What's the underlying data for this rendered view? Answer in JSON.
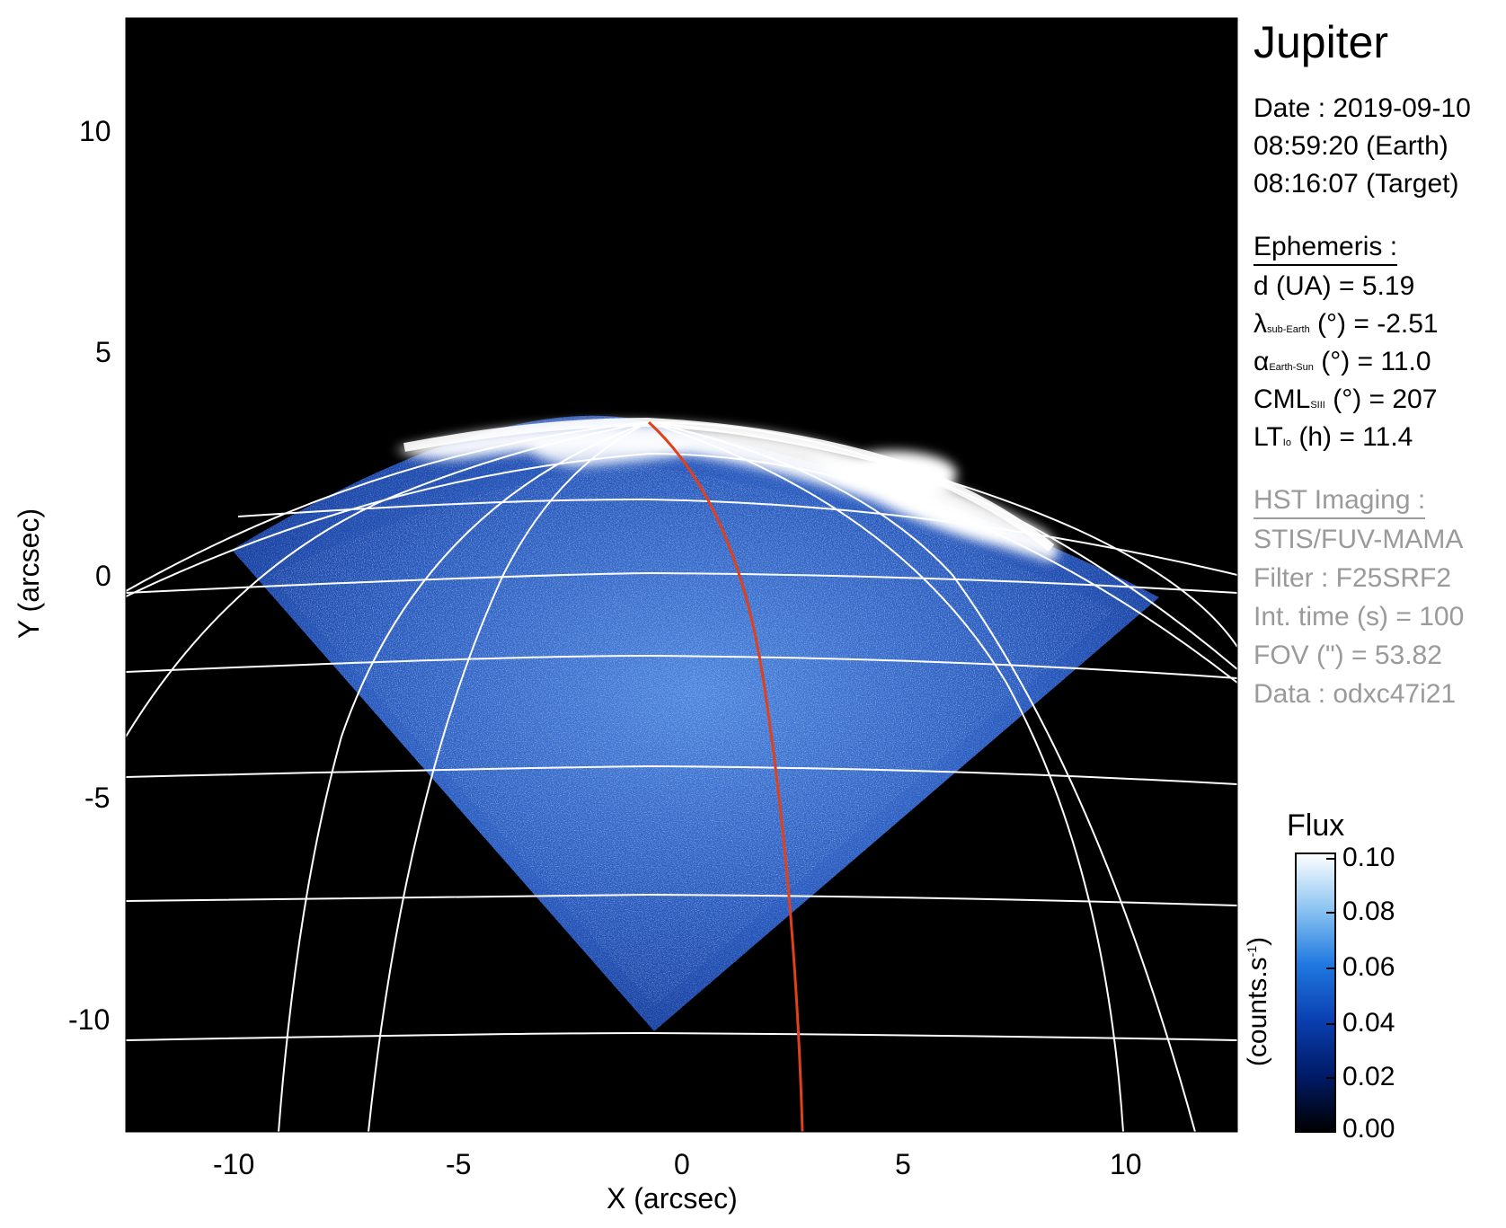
{
  "title": "Jupiter",
  "observation": {
    "date": "Date : 2019-09-10",
    "time_earth": "08:59:20 (Earth)",
    "time_target": "08:16:07 (Target)"
  },
  "ephemeris": {
    "heading": "Ephemeris :",
    "distance": "d (UA)    = 5.19",
    "lambda_symbol": "λ",
    "lambda_sub": "sub-Earth",
    "lambda_rest": "(°) = -2.51",
    "alpha_symbol": "α",
    "alpha_sub": "Earth-Sun",
    "alpha_rest": "(°) = 11.0",
    "cml_symbol": "CML",
    "cml_sub": "SIII",
    "cml_rest": "(°) = 207",
    "lt_symbol": "LT",
    "lt_sub": "Io",
    "lt_rest": "(h) = 11.4"
  },
  "imaging": {
    "heading": "HST Imaging :",
    "instrument": "STIS/FUV-MAMA",
    "filter": "Filter : F25SRF2",
    "int_time": "Int. time (s) = 100",
    "fov": "FOV (\") = 53.82",
    "data": "Data : odxc47i21"
  },
  "axes": {
    "x_label": "X (arcsec)",
    "y_label": "Y (arcsec)",
    "x_range": [
      -12.5,
      12.5
    ],
    "y_range": [
      -12.5,
      12.5
    ],
    "x_ticks": [
      "-10",
      "-5",
      "0",
      "5",
      "10"
    ],
    "y_ticks": [
      "10",
      "5",
      "0",
      "-5",
      "-10"
    ]
  },
  "colorbar": {
    "title": "Flux",
    "unit_label": "(counts.s",
    "unit_exp": "-1",
    "unit_close": ")",
    "ticks": [
      "0.10",
      "0.08",
      "0.06",
      "0.04",
      "0.02",
      "0.00"
    ],
    "range": [
      0.0,
      0.1
    ],
    "colors": [
      "#000000",
      "#001a66",
      "#0a3fb0",
      "#1f78e0",
      "#8cc4f2",
      "#ffffff"
    ]
  },
  "colors": {
    "background": "#000000",
    "grid": "#ffffff",
    "auroral_emission": "#ffffff",
    "disk_glow": "#2a62c8",
    "meridian": "#e0401a"
  }
}
